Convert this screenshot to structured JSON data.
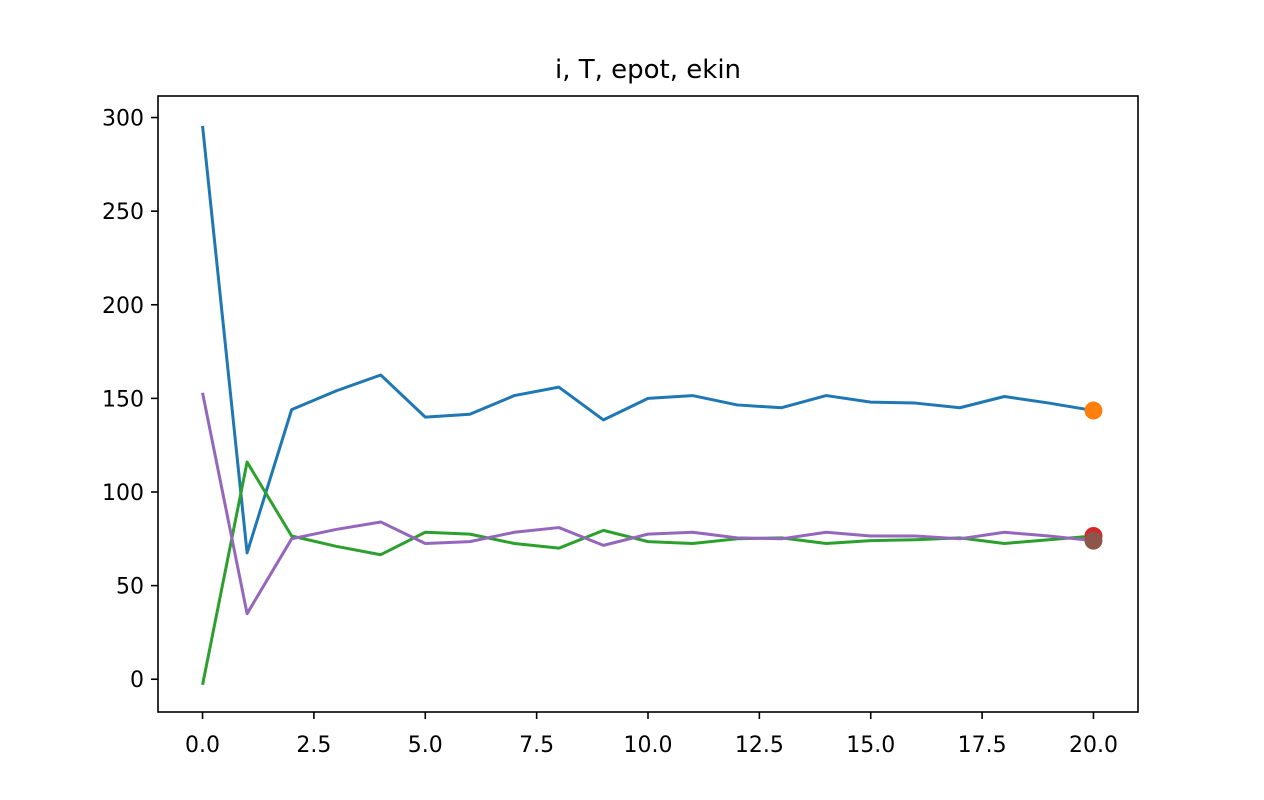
{
  "chart_data": {
    "type": "line",
    "title": "i, T, epot, ekin",
    "xlabel": "",
    "ylabel": "",
    "xlim": [
      -1.0,
      21.0
    ],
    "ylim": [
      -17.5,
      311.5
    ],
    "x_ticks": [
      "0.0",
      "2.5",
      "5.0",
      "7.5",
      "10.0",
      "12.5",
      "15.0",
      "17.5",
      "20.0"
    ],
    "x_tick_values": [
      0,
      2.5,
      5,
      7.5,
      10,
      12.5,
      15,
      17.5,
      20
    ],
    "y_ticks": [
      "0",
      "50",
      "100",
      "150",
      "200",
      "250",
      "300"
    ],
    "y_tick_values": [
      0,
      50,
      100,
      150,
      200,
      250,
      300
    ],
    "grid": false,
    "legend": "none",
    "x": [
      0,
      1,
      2,
      3,
      4,
      5,
      6,
      7,
      8,
      9,
      10,
      11,
      12,
      13,
      14,
      15,
      16,
      17,
      18,
      19,
      20
    ],
    "series": [
      {
        "color": "#1f77b4",
        "values": [
          295.5,
          67.5,
          144,
          154,
          162.5,
          140,
          141.5,
          151.5,
          156,
          138.5,
          150,
          151.5,
          146.5,
          145,
          151.5,
          148,
          147.5,
          145,
          151,
          147.5,
          143.5
        ]
      },
      {
        "color": "#2ca02c",
        "values": [
          -3,
          116,
          76.5,
          71,
          66.5,
          78.5,
          77.5,
          72.5,
          70,
          79.5,
          73.5,
          72.5,
          75,
          75.5,
          72.5,
          74,
          74.5,
          75.5,
          72.5,
          74.5,
          76.5
        ]
      },
      {
        "color": "#9467bd",
        "values": [
          153,
          35,
          75,
          80,
          84,
          72.5,
          73.5,
          78.5,
          81,
          71.5,
          77.5,
          78.5,
          75.5,
          75,
          78.5,
          76.5,
          76.5,
          75,
          78.5,
          76.5,
          74
        ]
      }
    ],
    "end_markers": [
      {
        "x": 20,
        "y": 143.5,
        "color": "#ff7f0e"
      },
      {
        "x": 20,
        "y": 76.5,
        "color": "#d62728"
      },
      {
        "x": 20,
        "y": 74,
        "color": "#8c564b"
      }
    ]
  }
}
